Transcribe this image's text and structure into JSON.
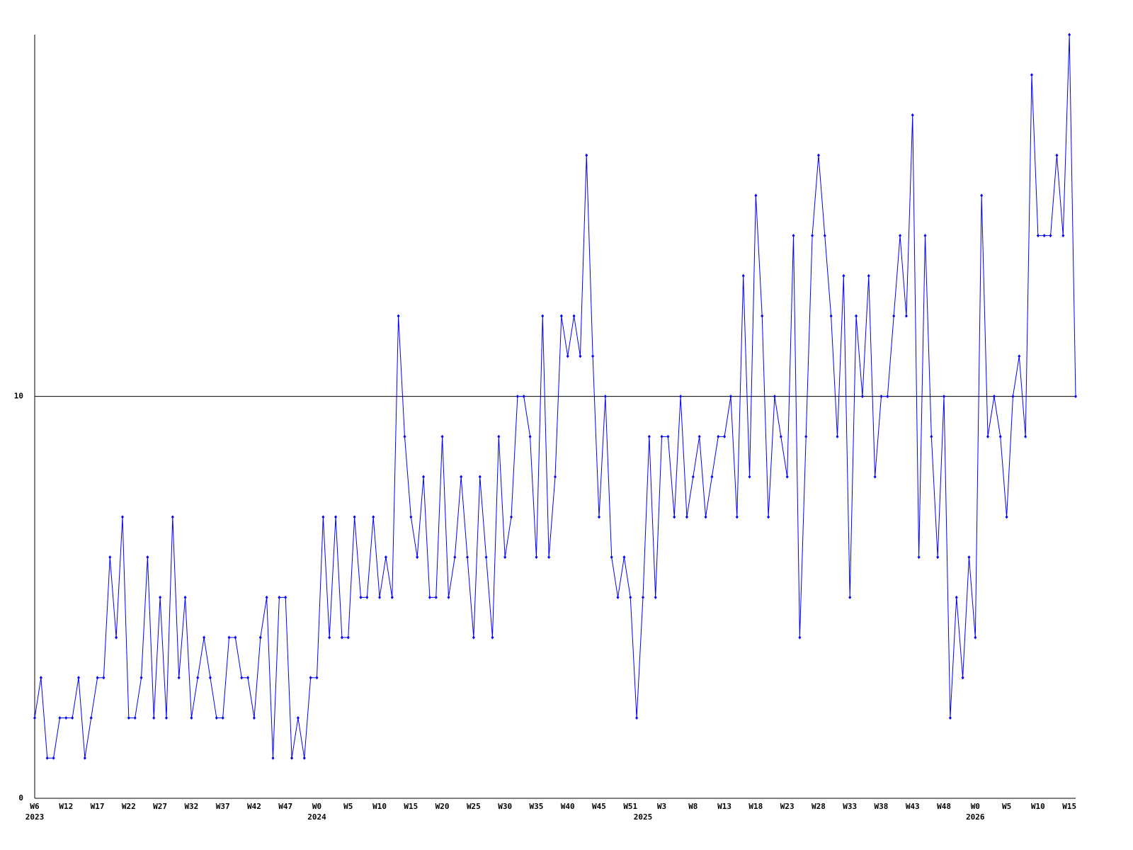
{
  "chart_data": {
    "type": "line",
    "categories": [
      "W6",
      null,
      null,
      null,
      null,
      "W12",
      null,
      null,
      null,
      null,
      "W17",
      null,
      null,
      null,
      null,
      "W22",
      null,
      null,
      null,
      null,
      "W27",
      null,
      null,
      null,
      null,
      "W32",
      null,
      null,
      null,
      null,
      "W37",
      null,
      null,
      null,
      null,
      "W42",
      null,
      null,
      null,
      null,
      "W47",
      null,
      null,
      null,
      null,
      "W0",
      null,
      null,
      null,
      null,
      "W5",
      null,
      null,
      null,
      null,
      "W10",
      null,
      null,
      null,
      null,
      "W15",
      null,
      null,
      null,
      null,
      "W20",
      null,
      null,
      null,
      null,
      "W25",
      null,
      null,
      null,
      null,
      "W30",
      null,
      null,
      null,
      null,
      "W35",
      null,
      null,
      null,
      null,
      "W40",
      null,
      null,
      null,
      null,
      "W45",
      null,
      null,
      null,
      null,
      "W51",
      null,
      null,
      null,
      null,
      "W3",
      null,
      null,
      null,
      null,
      "W8",
      null,
      null,
      null,
      null,
      "W13",
      null,
      null,
      null,
      null,
      "W18",
      null,
      null,
      null,
      null,
      "W23",
      null,
      null,
      null,
      null,
      "W28",
      null,
      null,
      null,
      null,
      "W33",
      null,
      null,
      null,
      null,
      "W38",
      null,
      null,
      null,
      null,
      "W43",
      null,
      null,
      null,
      null,
      "W48",
      null,
      null,
      null,
      null,
      "W0",
      null,
      null,
      null,
      null,
      "W5",
      null,
      null,
      null,
      null,
      "W10",
      null,
      null,
      null,
      null,
      "W15",
      null
    ],
    "year_labels": [
      "2023",
      null,
      null,
      null,
      null,
      null,
      null,
      null,
      null,
      null,
      null,
      null,
      null,
      null,
      null,
      null,
      null,
      null,
      null,
      null,
      null,
      null,
      null,
      null,
      null,
      null,
      null,
      null,
      null,
      null,
      null,
      null,
      null,
      null,
      null,
      null,
      null,
      null,
      null,
      null,
      null,
      null,
      null,
      null,
      null,
      "2024",
      null,
      null,
      null,
      null,
      null,
      null,
      null,
      null,
      null,
      null,
      null,
      null,
      null,
      null,
      null,
      null,
      null,
      null,
      null,
      null,
      null,
      null,
      null,
      null,
      null,
      null,
      null,
      null,
      null,
      null,
      null,
      null,
      null,
      null,
      null,
      null,
      null,
      null,
      null,
      null,
      null,
      null,
      null,
      null,
      null,
      null,
      null,
      null,
      null,
      null,
      null,
      "2025",
      null,
      null,
      null,
      null,
      null,
      null,
      null,
      null,
      null,
      null,
      null,
      null,
      null,
      null,
      null,
      null,
      null,
      null,
      null,
      null,
      null,
      null,
      null,
      null,
      null,
      null,
      null,
      null,
      null,
      null,
      null,
      null,
      null,
      null,
      null,
      null,
      null,
      null,
      null,
      null,
      null,
      null,
      null,
      null,
      null,
      null,
      null,
      null,
      null,
      null,
      null,
      null,
      "2026",
      null,
      null,
      null,
      null,
      null,
      null,
      null,
      null,
      null,
      null,
      null,
      null,
      null,
      null,
      null,
      null
    ],
    "series": [
      {
        "color": "#0000ff",
        "values": [
          2,
          3,
          1,
          1,
          2,
          2,
          2,
          3,
          1,
          2,
          3,
          3,
          6,
          4,
          7,
          2,
          2,
          3,
          6,
          2,
          5,
          2,
          7,
          3,
          5,
          2,
          3,
          4,
          3,
          2,
          2,
          4,
          4,
          3,
          3,
          2,
          4,
          5,
          1,
          5,
          5,
          1,
          2,
          1,
          3,
          3,
          7,
          4,
          7,
          4,
          4,
          7,
          5,
          5,
          7,
          5,
          6,
          5,
          12,
          9,
          7,
          6,
          8,
          5,
          5,
          9,
          5,
          6,
          8,
          6,
          4,
          8,
          6,
          4,
          9,
          6,
          7,
          10,
          10,
          9,
          6,
          12,
          6,
          8,
          12,
          11,
          12,
          11,
          16,
          11,
          7,
          10,
          6,
          5,
          6,
          5,
          2,
          5,
          9,
          5,
          9,
          9,
          7,
          10,
          7,
          8,
          9,
          7,
          8,
          9,
          9,
          10,
          7,
          13,
          8,
          15,
          12,
          7,
          10,
          9,
          8,
          14,
          4,
          9,
          14,
          16,
          14,
          12,
          9,
          13,
          5,
          12,
          10,
          13,
          8,
          10,
          10,
          12,
          14,
          12,
          17,
          6,
          14,
          9,
          6,
          10,
          2,
          5,
          3,
          6,
          4,
          15,
          9,
          10,
          9,
          7,
          10,
          11,
          9,
          18,
          14,
          14,
          14,
          16,
          14,
          19,
          10
        ]
      }
    ],
    "ylim": [
      0,
      19
    ],
    "yticks": [
      0,
      10
    ],
    "grid": true
  }
}
